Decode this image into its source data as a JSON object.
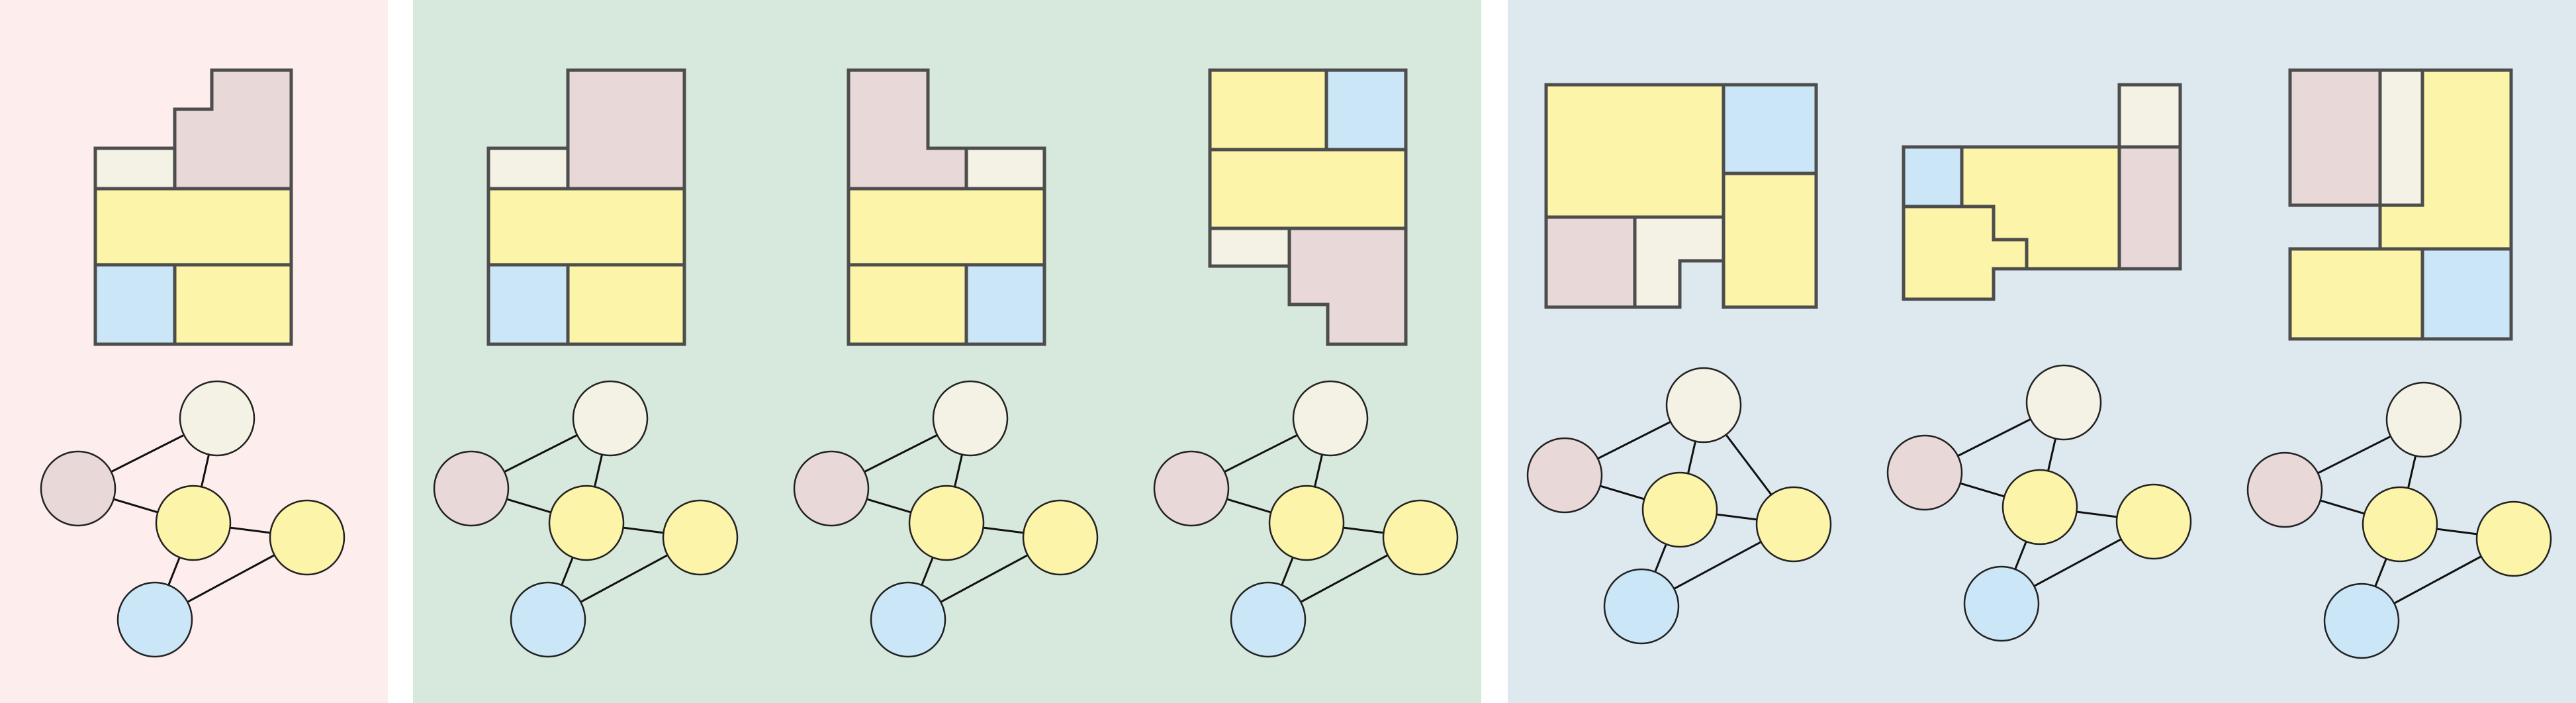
{
  "colors": {
    "reference_panel": "#fdeeed",
    "panel_green": "#d7e9dc",
    "panel_blue": "#dde9ef",
    "stroke": "#4d4d4d",
    "edge": "#111111",
    "room_pink": "#e9d8d8",
    "room_cream": "#f3f2e5",
    "room_yellow": "#fcf4a8",
    "room_blue": "#cbe6f7"
  },
  "panels": [
    {
      "name": "reference",
      "color_key": "reference_panel"
    },
    {
      "name": "group-green",
      "color_key": "panel_green"
    },
    {
      "name": "group-blue",
      "color_key": "panel_blue"
    }
  ],
  "graph_nodes": [
    {
      "id": "cream",
      "color_key": "room_cream"
    },
    {
      "id": "pink",
      "color_key": "room_pink"
    },
    {
      "id": "hub",
      "color_key": "room_yellow"
    },
    {
      "id": "right",
      "color_key": "room_yellow"
    },
    {
      "id": "blue",
      "color_key": "room_blue"
    }
  ],
  "layouts": [
    {
      "panel": "reference",
      "rooms": [
        "room_cream",
        "room_pink",
        "room_yellow",
        "room_blue",
        "room_yellow"
      ],
      "edges": [
        [
          "pink",
          "cream"
        ],
        [
          "pink",
          "hub"
        ],
        [
          "cream",
          "hub"
        ],
        [
          "hub",
          "right"
        ],
        [
          "hub",
          "blue"
        ],
        [
          "blue",
          "right"
        ]
      ]
    },
    {
      "panel": "group-green",
      "rooms": [
        "room_cream",
        "room_pink",
        "room_yellow",
        "room_blue",
        "room_yellow"
      ],
      "edges": [
        [
          "pink",
          "cream"
        ],
        [
          "pink",
          "hub"
        ],
        [
          "cream",
          "hub"
        ],
        [
          "hub",
          "right"
        ],
        [
          "hub",
          "blue"
        ],
        [
          "blue",
          "right"
        ]
      ]
    },
    {
      "panel": "group-green",
      "rooms": [
        "room_pink",
        "room_cream",
        "room_yellow",
        "room_yellow",
        "room_blue"
      ],
      "edges": [
        [
          "pink",
          "cream"
        ],
        [
          "pink",
          "hub"
        ],
        [
          "cream",
          "hub"
        ],
        [
          "hub",
          "right"
        ],
        [
          "hub",
          "blue"
        ],
        [
          "blue",
          "right"
        ]
      ]
    },
    {
      "panel": "group-green",
      "rooms": [
        "room_yellow",
        "room_blue",
        "room_yellow",
        "room_cream",
        "room_pink"
      ],
      "edges": [
        [
          "pink",
          "cream"
        ],
        [
          "pink",
          "hub"
        ],
        [
          "cream",
          "hub"
        ],
        [
          "hub",
          "right"
        ],
        [
          "hub",
          "blue"
        ],
        [
          "blue",
          "right"
        ]
      ]
    },
    {
      "panel": "group-blue",
      "rooms": [
        "room_yellow",
        "room_blue",
        "room_pink",
        "room_cream",
        "room_yellow"
      ],
      "edges": [
        [
          "pink",
          "cream"
        ],
        [
          "pink",
          "hub"
        ],
        [
          "cream",
          "hub"
        ],
        [
          "cream",
          "right"
        ],
        [
          "hub",
          "right"
        ],
        [
          "hub",
          "blue"
        ],
        [
          "blue",
          "right"
        ]
      ]
    },
    {
      "panel": "group-blue",
      "rooms": [
        "room_cream",
        "room_blue",
        "room_yellow",
        "room_pink",
        "room_yellow"
      ],
      "edges": [
        [
          "pink",
          "cream"
        ],
        [
          "pink",
          "hub"
        ],
        [
          "cream",
          "hub"
        ],
        [
          "hub",
          "right"
        ],
        [
          "hub",
          "blue"
        ],
        [
          "blue",
          "right"
        ]
      ]
    },
    {
      "panel": "group-blue",
      "rooms": [
        "room_pink",
        "room_cream",
        "room_yellow",
        "room_yellow",
        "room_blue"
      ],
      "edges": [
        [
          "pink",
          "cream"
        ],
        [
          "pink",
          "hub"
        ],
        [
          "cream",
          "hub"
        ],
        [
          "hub",
          "right"
        ],
        [
          "hub",
          "blue"
        ],
        [
          "blue",
          "right"
        ]
      ]
    }
  ]
}
